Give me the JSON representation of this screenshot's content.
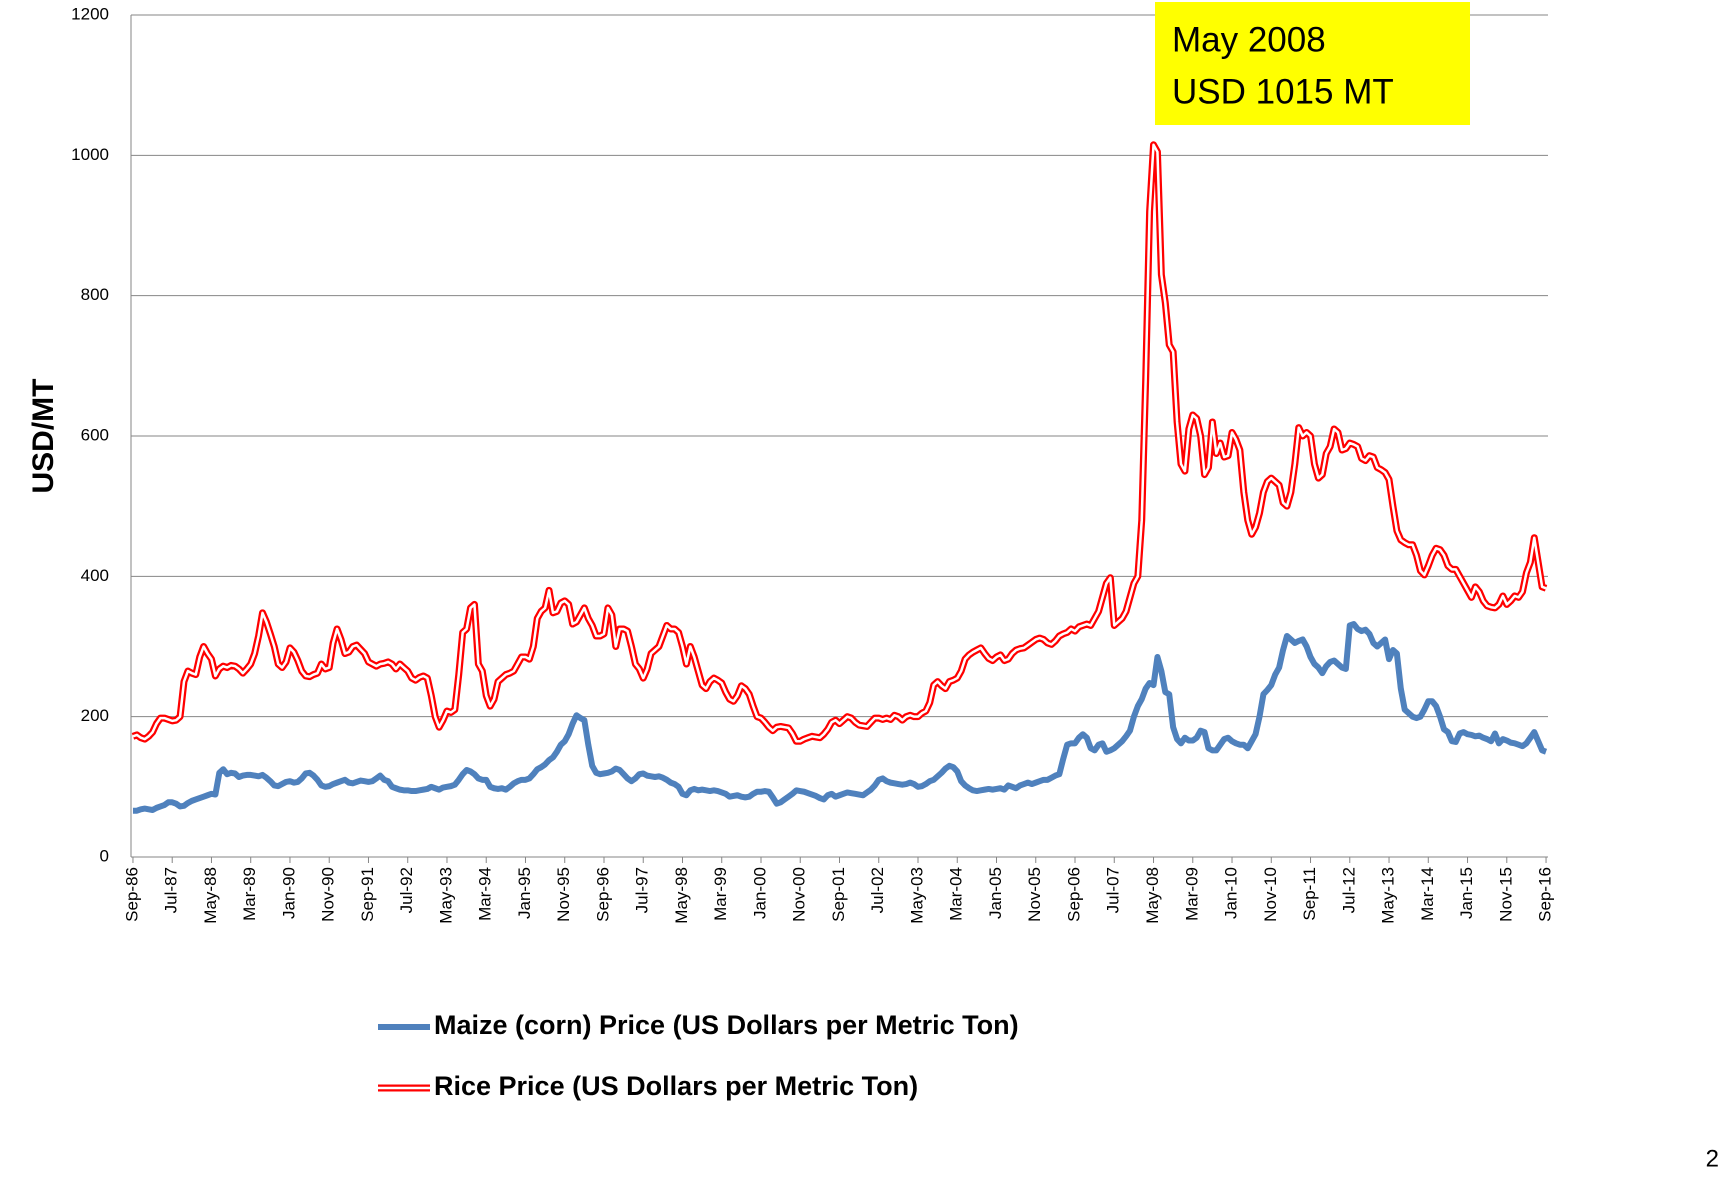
{
  "chart_data": {
    "type": "line",
    "y_label": "USD/MT",
    "annotation": [
      "May 2008",
      "USD 1015 MT"
    ],
    "page_number": "2",
    "ylim": [
      0,
      1200
    ],
    "yticks": [
      0,
      200,
      400,
      600,
      800,
      1000,
      1200
    ],
    "grid": true,
    "categories": [
      "Sep-86",
      null,
      null,
      null,
      null,
      null,
      null,
      null,
      null,
      null,
      "Jul-87",
      null,
      null,
      null,
      null,
      null,
      null,
      null,
      null,
      null,
      "May-88",
      null,
      null,
      null,
      null,
      null,
      null,
      null,
      null,
      null,
      "Mar-89",
      null,
      null,
      null,
      null,
      null,
      null,
      null,
      null,
      null,
      "Jan-90",
      null,
      null,
      null,
      null,
      null,
      null,
      null,
      null,
      null,
      "Nov-90",
      null,
      null,
      null,
      null,
      null,
      null,
      null,
      null,
      null,
      "Sep-91",
      null,
      null,
      null,
      null,
      null,
      null,
      null,
      null,
      null,
      "Jul-92",
      null,
      null,
      null,
      null,
      null,
      null,
      null,
      null,
      null,
      "May-93",
      null,
      null,
      null,
      null,
      null,
      null,
      null,
      null,
      null,
      "Mar-94",
      null,
      null,
      null,
      null,
      null,
      null,
      null,
      null,
      null,
      "Jan-95",
      null,
      null,
      null,
      null,
      null,
      null,
      null,
      null,
      null,
      "Nov-95",
      null,
      null,
      null,
      null,
      null,
      null,
      null,
      null,
      null,
      "Sep-96",
      null,
      null,
      null,
      null,
      null,
      null,
      null,
      null,
      null,
      "Jul-97",
      null,
      null,
      null,
      null,
      null,
      null,
      null,
      null,
      null,
      "May-98",
      null,
      null,
      null,
      null,
      null,
      null,
      null,
      null,
      null,
      "Mar-99",
      null,
      null,
      null,
      null,
      null,
      null,
      null,
      null,
      null,
      "Jan-00",
      null,
      null,
      null,
      null,
      null,
      null,
      null,
      null,
      null,
      "Nov-00",
      null,
      null,
      null,
      null,
      null,
      null,
      null,
      null,
      null,
      "Sep-01",
      null,
      null,
      null,
      null,
      null,
      null,
      null,
      null,
      null,
      "Jul-02",
      null,
      null,
      null,
      null,
      null,
      null,
      null,
      null,
      null,
      "May-03",
      null,
      null,
      null,
      null,
      null,
      null,
      null,
      null,
      null,
      "Mar-04",
      null,
      null,
      null,
      null,
      null,
      null,
      null,
      null,
      null,
      "Jan-05",
      null,
      null,
      null,
      null,
      null,
      null,
      null,
      null,
      null,
      "Nov-05",
      null,
      null,
      null,
      null,
      null,
      null,
      null,
      null,
      null,
      "Sep-06",
      null,
      null,
      null,
      null,
      null,
      null,
      null,
      null,
      null,
      "Jul-07",
      null,
      null,
      null,
      null,
      null,
      null,
      null,
      null,
      null,
      "May-08",
      null,
      null,
      null,
      null,
      null,
      null,
      null,
      null,
      null,
      "Mar-09",
      null,
      null,
      null,
      null,
      null,
      null,
      null,
      null,
      null,
      "Jan-10",
      null,
      null,
      null,
      null,
      null,
      null,
      null,
      null,
      null,
      "Nov-10",
      null,
      null,
      null,
      null,
      null,
      null,
      null,
      null,
      null,
      "Sep-11",
      null,
      null,
      null,
      null,
      null,
      null,
      null,
      null,
      null,
      "Jul-12",
      null,
      null,
      null,
      null,
      null,
      null,
      null,
      null,
      null,
      "May-13",
      null,
      null,
      null,
      null,
      null,
      null,
      null,
      null,
      null,
      "Mar-14",
      null,
      null,
      null,
      null,
      null,
      null,
      null,
      null,
      null,
      "Jan-15",
      null,
      null,
      null,
      null,
      null,
      null,
      null,
      null,
      null,
      "Nov-15",
      null,
      null,
      null,
      null,
      null,
      null,
      null,
      null,
      null,
      "Sep-16"
    ],
    "series": [
      {
        "name": "Maize (corn) Price (US Dollars per Metric Ton)",
        "color": "#4f81bd",
        "style": "solid",
        "values": [
          66,
          66,
          68,
          69,
          68,
          67,
          70,
          72,
          74,
          78,
          78,
          76,
          72,
          73,
          77,
          80,
          82,
          84,
          86,
          88,
          90,
          89,
          120,
          125,
          118,
          120,
          119,
          114,
          116,
          117,
          117,
          116,
          115,
          117,
          113,
          108,
          102,
          101,
          104,
          107,
          108,
          106,
          107,
          112,
          119,
          120,
          116,
          110,
          102,
          100,
          101,
          104,
          106,
          108,
          110,
          106,
          105,
          107,
          109,
          108,
          107,
          108,
          112,
          116,
          110,
          108,
          100,
          98,
          96,
          95,
          95,
          94,
          94,
          95,
          96,
          97,
          100,
          98,
          96,
          99,
          100,
          101,
          103,
          110,
          118,
          124,
          122,
          118,
          112,
          110,
          110,
          100,
          98,
          97,
          98,
          96,
          100,
          105,
          108,
          110,
          110,
          112,
          118,
          125,
          128,
          132,
          138,
          142,
          150,
          160,
          165,
          175,
          190,
          202,
          198,
          195,
          160,
          130,
          120,
          118,
          119,
          120,
          122,
          126,
          124,
          118,
          112,
          108,
          112,
          118,
          119,
          116,
          115,
          114,
          115,
          113,
          110,
          106,
          104,
          100,
          90,
          88,
          95,
          97,
          95,
          96,
          95,
          94,
          95,
          94,
          92,
          90,
          86,
          87,
          88,
          86,
          85,
          86,
          90,
          93,
          93,
          94,
          93,
          85,
          76,
          78,
          82,
          86,
          90,
          95,
          94,
          93,
          91,
          89,
          87,
          84,
          82,
          88,
          90,
          86,
          88,
          90,
          92,
          91,
          90,
          89,
          88,
          92,
          96,
          102,
          110,
          112,
          108,
          106,
          105,
          104,
          103,
          104,
          106,
          104,
          100,
          101,
          104,
          108,
          110,
          115,
          120,
          126,
          130,
          128,
          122,
          108,
          102,
          98,
          95,
          94,
          95,
          96,
          97,
          96,
          97,
          98,
          96,
          102,
          100,
          98,
          102,
          104,
          106,
          104,
          106,
          108,
          110,
          110,
          113,
          116,
          118,
          140,
          160,
          162,
          162,
          170,
          175,
          170,
          155,
          152,
          160,
          162,
          150,
          152,
          155,
          160,
          165,
          172,
          180,
          200,
          215,
          225,
          240,
          248,
          245,
          285,
          265,
          235,
          232,
          185,
          168,
          162,
          170,
          166,
          166,
          170,
          180,
          178,
          155,
          152,
          152,
          160,
          168,
          170,
          165,
          162,
          160,
          160,
          155,
          165,
          175,
          200,
          232,
          238,
          245,
          260,
          270,
          295,
          315,
          310,
          305,
          308,
          310,
          300,
          285,
          275,
          270,
          262,
          272,
          278,
          280,
          275,
          270,
          268,
          330,
          332,
          325,
          322,
          324,
          318,
          305,
          300,
          305,
          310,
          282,
          295,
          290,
          240,
          210,
          205,
          200,
          198,
          200,
          210,
          222,
          222,
          215,
          200,
          182,
          178,
          165,
          164,
          176,
          178,
          175,
          174,
          172,
          173,
          170,
          168,
          165,
          176,
          162,
          168,
          166,
          163,
          162,
          160,
          158,
          162,
          170,
          178,
          165,
          152,
          150
        ]
      },
      {
        "name": "Rice Price (US Dollars per Metric Ton)",
        "color": "#ff0000",
        "style": "double",
        "values": [
          172,
          174,
          170,
          168,
          172,
          178,
          190,
          198,
          198,
          196,
          194,
          195,
          200,
          250,
          265,
          262,
          260,
          285,
          300,
          290,
          282,
          258,
          268,
          272,
          270,
          273,
          272,
          268,
          262,
          268,
          275,
          290,
          315,
          348,
          335,
          318,
          300,
          275,
          270,
          278,
          298,
          292,
          280,
          265,
          258,
          257,
          260,
          262,
          275,
          268,
          270,
          305,
          325,
          310,
          290,
          292,
          300,
          302,
          296,
          290,
          278,
          275,
          272,
          275,
          276,
          278,
          275,
          268,
          275,
          270,
          265,
          255,
          252,
          256,
          258,
          255,
          230,
          200,
          185,
          195,
          208,
          206,
          210,
          260,
          320,
          325,
          355,
          360,
          275,
          265,
          230,
          215,
          225,
          250,
          255,
          260,
          262,
          265,
          275,
          285,
          285,
          282,
          300,
          340,
          350,
          355,
          380,
          348,
          350,
          362,
          365,
          360,
          332,
          335,
          345,
          355,
          340,
          330,
          315,
          315,
          318,
          355,
          345,
          300,
          325,
          325,
          322,
          300,
          275,
          268,
          255,
          268,
          290,
          295,
          300,
          315,
          330,
          325,
          325,
          320,
          300,
          275,
          300,
          285,
          265,
          245,
          240,
          250,
          255,
          252,
          248,
          235,
          225,
          222,
          230,
          244,
          240,
          232,
          215,
          200,
          198,
          192,
          185,
          180,
          185,
          186,
          185,
          184,
          176,
          165,
          165,
          168,
          170,
          172,
          171,
          170,
          175,
          182,
          192,
          195,
          190,
          195,
          200,
          198,
          192,
          188,
          187,
          186,
          192,
          198,
          198,
          196,
          198,
          196,
          202,
          200,
          195,
          200,
          202,
          200,
          200,
          205,
          208,
          220,
          245,
          250,
          244,
          240,
          250,
          252,
          255,
          265,
          282,
          288,
          292,
          295,
          298,
          290,
          283,
          280,
          285,
          288,
          280,
          282,
          290,
          295,
          297,
          298,
          302,
          306,
          310,
          312,
          310,
          305,
          303,
          308,
          315,
          318,
          320,
          325,
          322,
          328,
          330,
          332,
          330,
          340,
          350,
          370,
          390,
          398,
          330,
          335,
          340,
          350,
          370,
          390,
          400,
          480,
          680,
          920,
          1015,
          1005,
          830,
          790,
          730,
          720,
          620,
          560,
          550,
          610,
          630,
          625,
          600,
          545,
          555,
          620,
          575,
          590,
          570,
          572,
          605,
          595,
          580,
          520,
          480,
          460,
          470,
          490,
          520,
          535,
          540,
          535,
          530,
          505,
          500,
          520,
          560,
          612,
          600,
          605,
          600,
          560,
          540,
          545,
          575,
          585,
          610,
          605,
          580,
          582,
          590,
          588,
          585,
          568,
          565,
          572,
          570,
          555,
          552,
          548,
          538,
          500,
          465,
          452,
          448,
          445,
          445,
          430,
          408,
          402,
          415,
          430,
          440,
          438,
          430,
          415,
          410,
          410,
          400,
          390,
          380,
          370,
          385,
          378,
          365,
          358,
          356,
          355,
          360,
          372,
          360,
          365,
          372,
          370,
          378,
          405,
          420,
          455,
          420,
          385,
          383
        ]
      }
    ]
  }
}
